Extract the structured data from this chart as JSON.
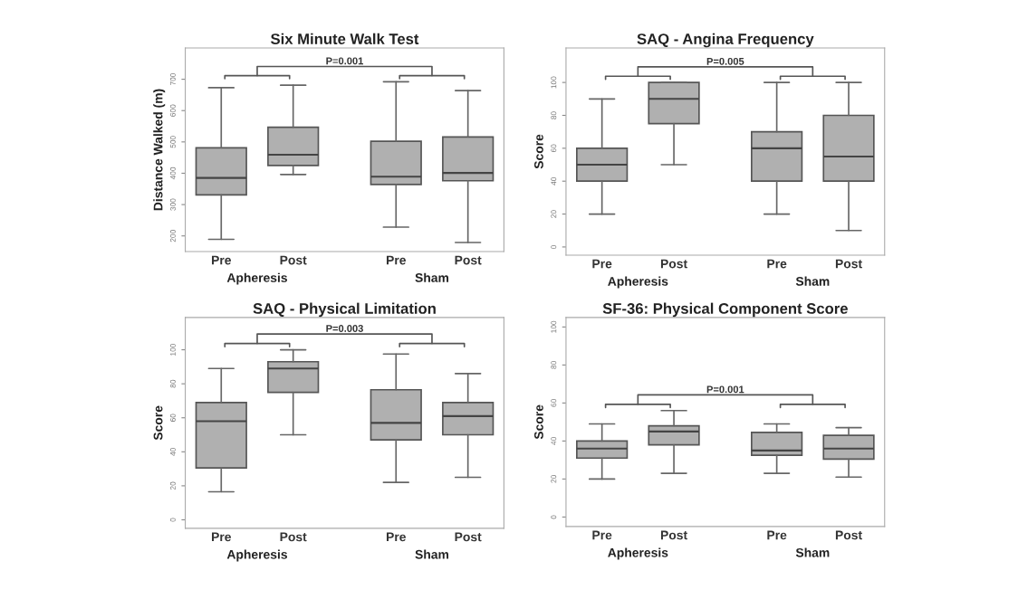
{
  "chart_data": [
    {
      "type": "box",
      "title": "Six Minute Walk Test",
      "ylabel": "Distance Walked (m)",
      "categories": [
        "Pre",
        "Post",
        "Pre",
        "Post"
      ],
      "annotations": [
        "P=0.001",
        "Apheresis",
        "Sham"
      ],
      "ylim": [
        150,
        800
      ],
      "yticks": [
        200,
        300,
        400,
        500,
        600,
        700
      ],
      "color": "#b0b0b0",
      "boxes": [
        {
          "low": 189,
          "q1": 331,
          "median": 385,
          "q3": 481,
          "high": 673
        },
        {
          "low": 396,
          "q1": 425,
          "median": 459,
          "q3": 547,
          "high": 681
        },
        {
          "low": 228,
          "q1": 364,
          "median": 389,
          "q3": 502,
          "high": 692
        },
        {
          "low": 179,
          "q1": 376,
          "median": 401,
          "q3": 516,
          "high": 664
        }
      ]
    },
    {
      "type": "box",
      "title": "SAQ - Angina Frequency",
      "ylabel": "Score",
      "categories": [
        "Pre",
        "Post",
        "Pre",
        "Post"
      ],
      "annotations": [
        "P=0.005",
        "Apheresis",
        "Sham"
      ],
      "ylim": [
        -5,
        121
      ],
      "yticks": [
        0,
        20,
        40,
        60,
        80,
        100
      ],
      "color": "#b0b0b0",
      "boxes": [
        {
          "low": 20,
          "q1": 40,
          "median": 50,
          "q3": 60,
          "high": 90
        },
        {
          "low": 50,
          "q1": 75,
          "median": 90,
          "q3": 100,
          "high": 100
        },
        {
          "low": 20,
          "q1": 40,
          "median": 60,
          "q3": 70,
          "high": 100
        },
        {
          "low": 10,
          "q1": 40,
          "median": 55,
          "q3": 80,
          "high": 100
        }
      ]
    },
    {
      "type": "box",
      "title": "SAQ - Physical Limitation",
      "ylabel": "Score",
      "categories": [
        "Pre",
        "Post",
        "Pre",
        "Post"
      ],
      "annotations": [
        "P=0.003",
        "Apheresis",
        "Sham"
      ],
      "ylim": [
        -5,
        119
      ],
      "yticks": [
        0,
        20,
        40,
        60,
        80,
        100
      ],
      "color": "#b0b0b0",
      "boxes": [
        {
          "low": 16.5,
          "q1": 30.5,
          "median": 58,
          "q3": 69,
          "high": 89
        },
        {
          "low": 50,
          "q1": 75,
          "median": 89,
          "q3": 93,
          "high": 100
        },
        {
          "low": 22,
          "q1": 47,
          "median": 57,
          "q3": 76.5,
          "high": 97.5
        },
        {
          "low": 25,
          "q1": 50,
          "median": 61,
          "q3": 69,
          "high": 86
        }
      ]
    },
    {
      "type": "box",
      "title": "SF-36: Physical Component Score",
      "ylabel": "Score",
      "categories": [
        "Pre",
        "Post",
        "Pre",
        "Post"
      ],
      "annotations": [
        "P=0.001",
        "Apheresis",
        "Sham"
      ],
      "ylim": [
        -5,
        105
      ],
      "yticks": [
        0,
        20,
        40,
        60,
        80,
        100
      ],
      "color": "#b0b0b0",
      "boxes": [
        {
          "low": 20,
          "q1": 31,
          "median": 36,
          "q3": 40,
          "high": 49
        },
        {
          "low": 23,
          "q1": 38,
          "median": 45,
          "q3": 48,
          "high": 56
        },
        {
          "low": 23,
          "q1": 32.5,
          "median": 35,
          "q3": 44.5,
          "high": 49
        },
        {
          "low": 21,
          "q1": 30.5,
          "median": 36,
          "q3": 43,
          "high": 47
        }
      ]
    }
  ]
}
